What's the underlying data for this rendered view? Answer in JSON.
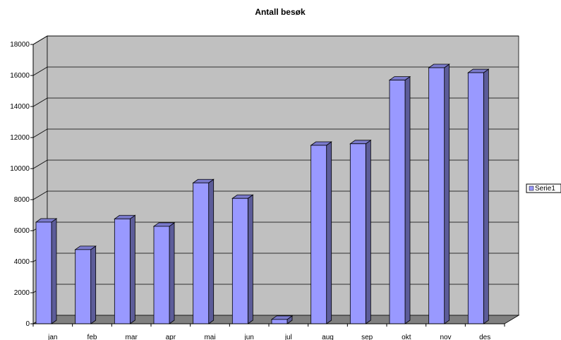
{
  "chart_data": {
    "type": "bar",
    "title": "Antall besøk",
    "xlabel": "",
    "ylabel": "",
    "categories": [
      "jan",
      "feb",
      "mar",
      "apr",
      "mai",
      "jun",
      "jul",
      "aug",
      "sep",
      "okt",
      "nov",
      "des"
    ],
    "series": [
      {
        "name": "Serie1",
        "values": [
          6550,
          4780,
          6760,
          6280,
          9080,
          8080,
          280,
          11500,
          11600,
          15700,
          16500,
          16180
        ]
      }
    ],
    "ylim": [
      0,
      18000
    ],
    "yticks": [
      "0",
      "2000",
      "4000",
      "6000",
      "8000",
      "10000",
      "12000",
      "14000",
      "16000",
      "18000"
    ],
    "grid": true,
    "legend": "right",
    "colors": {
      "bar_front": "#9999ff",
      "bar_side": "#5c5c99",
      "bar_top": "#7a7acc",
      "wall": "#c0c0c0",
      "floor": "#808080"
    }
  }
}
